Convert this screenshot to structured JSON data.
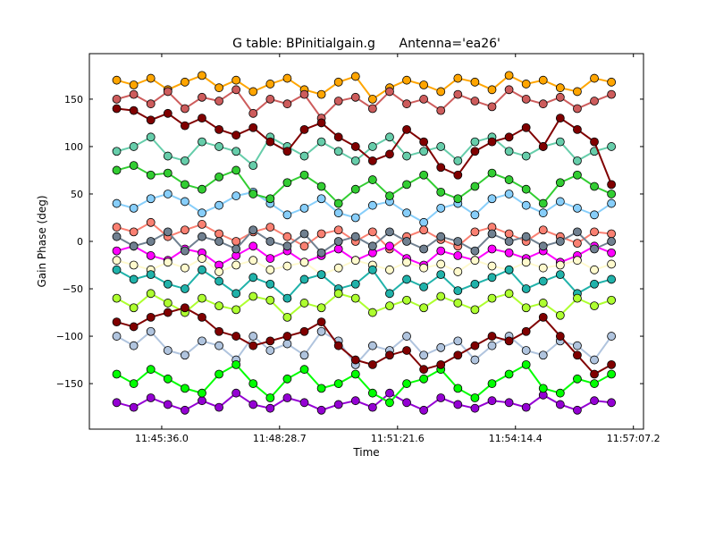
{
  "chart_data": {
    "type": "scatter",
    "title": "G table: BPinitialgain.g      Antenna='ea26'",
    "xlabel": "Time",
    "ylabel": "Gain Phase (deg)",
    "xlim": [
      "11:43:50",
      "11:57:22"
    ],
    "ylim": [
      -198,
      198
    ],
    "grid": false,
    "legend": "none",
    "xticks": [
      "11:45:36.0",
      "11:48:28.7",
      "11:51:21.6",
      "11:54:14.4",
      "11:57:07.2"
    ],
    "yticks": [
      150,
      100,
      50,
      0,
      -50,
      -100,
      -150
    ],
    "ytick_labels": [
      "150",
      "100",
      "50",
      "0",
      "−50",
      "−100",
      "−150"
    ],
    "x": [
      "11:44:30",
      "11:44:55",
      "11:45:20",
      "11:45:45",
      "11:46:10",
      "11:46:35",
      "11:47:00",
      "11:47:25",
      "11:47:50",
      "11:48:15",
      "11:48:40",
      "11:49:05",
      "11:49:30",
      "11:49:55",
      "11:50:20",
      "11:50:45",
      "11:51:10",
      "11:51:35",
      "11:52:00",
      "11:52:25",
      "11:52:50",
      "11:53:15",
      "11:53:40",
      "11:54:05",
      "11:54:30",
      "11:54:55",
      "11:55:20",
      "11:55:45",
      "11:56:10",
      "11:56:35"
    ],
    "series": [
      {
        "color": "#ffa500",
        "values": [
          170,
          165,
          172,
          160,
          168,
          175,
          162,
          170,
          158,
          166,
          172,
          160,
          155,
          168,
          174,
          150,
          162,
          170,
          165,
          158,
          172,
          168,
          160,
          175,
          166,
          170,
          162,
          158,
          172,
          168
        ]
      },
      {
        "color": "#cd5c5c",
        "values": [
          150,
          155,
          145,
          158,
          140,
          152,
          148,
          160,
          135,
          150,
          145,
          155,
          130,
          148,
          152,
          140,
          158,
          145,
          150,
          138,
          155,
          148,
          142,
          160,
          150,
          145,
          152,
          140,
          148,
          155
        ]
      },
      {
        "color": "#9400d3",
        "values": [
          -170,
          -175,
          -165,
          -172,
          -178,
          -168,
          -175,
          -160,
          -172,
          -176,
          -165,
          -170,
          -178,
          -172,
          -168,
          -175,
          -160,
          -170,
          -178,
          -165,
          -172,
          -176,
          -168,
          -170,
          -175,
          -162,
          -172,
          -178,
          -168,
          -170
        ]
      },
      {
        "color": "#87cefa",
        "values": [
          40,
          35,
          45,
          50,
          42,
          30,
          38,
          48,
          52,
          40,
          28,
          35,
          45,
          30,
          25,
          38,
          42,
          30,
          20,
          35,
          40,
          28,
          45,
          50,
          38,
          30,
          42,
          35,
          28,
          40
        ]
      },
      {
        "color": "#fa8072",
        "values": [
          15,
          10,
          20,
          5,
          12,
          18,
          8,
          0,
          10,
          15,
          5,
          -5,
          8,
          12,
          0,
          10,
          -8,
          5,
          12,
          2,
          -5,
          10,
          15,
          8,
          0,
          12,
          5,
          -2,
          10,
          8
        ]
      },
      {
        "color": "#ff00ff",
        "values": [
          -10,
          -5,
          -15,
          -20,
          -8,
          -12,
          -25,
          -15,
          -5,
          -18,
          -10,
          -22,
          -15,
          -8,
          -20,
          -12,
          -5,
          -18,
          -25,
          -10,
          -15,
          -20,
          -8,
          -12,
          -18,
          -10,
          -22,
          -15,
          -5,
          -12
        ]
      },
      {
        "color": "#708090",
        "values": [
          5,
          -5,
          0,
          10,
          -10,
          5,
          0,
          -8,
          12,
          0,
          -5,
          8,
          -12,
          0,
          5,
          -5,
          10,
          0,
          -8,
          5,
          0,
          -10,
          8,
          0,
          5,
          -5,
          0,
          10,
          -8,
          0
        ]
      },
      {
        "color": "#fffacd",
        "values": [
          -20,
          -25,
          -30,
          -22,
          -28,
          -18,
          -32,
          -25,
          -20,
          -30,
          -26,
          -22,
          -35,
          -28,
          -20,
          -25,
          -30,
          -22,
          -28,
          -24,
          -32,
          -20,
          -26,
          -30,
          -22,
          -28,
          -25,
          -20,
          -30,
          -24
        ]
      },
      {
        "color": "#20b2aa",
        "values": [
          -30,
          -40,
          -35,
          -45,
          -50,
          -30,
          -42,
          -55,
          -38,
          -45,
          -60,
          -40,
          -35,
          -50,
          -45,
          -30,
          -55,
          -40,
          -48,
          -35,
          -52,
          -45,
          -38,
          -30,
          -50,
          -42,
          -35,
          -55,
          -45,
          -40
        ]
      },
      {
        "color": "#adff2f",
        "values": [
          -60,
          -70,
          -55,
          -65,
          -75,
          -60,
          -68,
          -72,
          -58,
          -62,
          -80,
          -65,
          -70,
          -55,
          -60,
          -75,
          -68,
          -62,
          -70,
          -58,
          -65,
          -72,
          -60,
          -55,
          -70,
          -65,
          -78,
          -60,
          -68,
          -62
        ]
      },
      {
        "color": "#b0c4de",
        "values": [
          -100,
          -110,
          -95,
          -115,
          -120,
          -105,
          -110,
          -125,
          -100,
          -115,
          -108,
          -120,
          -95,
          -105,
          -130,
          -110,
          -115,
          -100,
          -120,
          -112,
          -105,
          -125,
          -110,
          -100,
          -115,
          -120,
          -105,
          -110,
          -125,
          -100
        ]
      },
      {
        "color": "#66cdaa",
        "values": [
          95,
          100,
          110,
          90,
          85,
          105,
          100,
          95,
          80,
          110,
          100,
          90,
          105,
          95,
          85,
          100,
          110,
          90,
          95,
          100,
          85,
          105,
          110,
          95,
          90,
          100,
          105,
          85,
          95,
          100
        ]
      },
      {
        "color": "#32cd32",
        "values": [
          75,
          80,
          70,
          72,
          60,
          55,
          68,
          75,
          50,
          45,
          62,
          70,
          58,
          40,
          55,
          65,
          48,
          60,
          70,
          52,
          45,
          58,
          72,
          65,
          55,
          40,
          62,
          70,
          58,
          50
        ]
      },
      {
        "color": "#00ff00",
        "values": [
          -140,
          -150,
          -135,
          -145,
          -155,
          -160,
          -140,
          -130,
          -150,
          -165,
          -145,
          -135,
          -155,
          -150,
          -140,
          -160,
          -170,
          -150,
          -145,
          -135,
          -155,
          -165,
          -150,
          -140,
          -130,
          -155,
          -160,
          -145,
          -150,
          -140
        ]
      },
      {
        "color": "#800000",
        "values": [
          140,
          138,
          128,
          135,
          122,
          130,
          118,
          112,
          120,
          105,
          95,
          118,
          125,
          110,
          100,
          85,
          92,
          118,
          105,
          78,
          70,
          95,
          105,
          110,
          120,
          100,
          130,
          118,
          105,
          60
        ]
      },
      {
        "color": "#800000",
        "values": [
          -85,
          -90,
          -80,
          -75,
          -70,
          -80,
          -95,
          -100,
          -110,
          -105,
          -100,
          -95,
          -85,
          -110,
          -125,
          -130,
          -120,
          -115,
          -135,
          -130,
          -120,
          -110,
          -100,
          -105,
          -95,
          -80,
          -100,
          -120,
          -140,
          -130
        ]
      }
    ]
  }
}
